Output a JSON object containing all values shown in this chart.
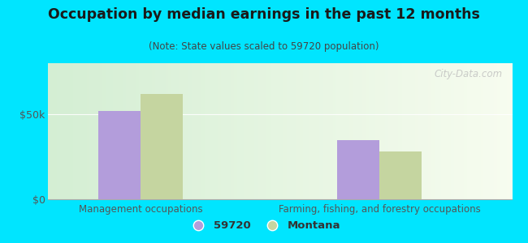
{
  "title": "Occupation by median earnings in the past 12 months",
  "subtitle": "(Note: State values scaled to 59720 population)",
  "categories": [
    "Management occupations",
    "Farming, fishing, and forestry occupations"
  ],
  "values_59720": [
    52000,
    35000
  ],
  "values_montana": [
    62000,
    28000
  ],
  "bar_color_59720": "#b39ddb",
  "bar_color_montana": "#c5d5a0",
  "yticks": [
    0,
    50000
  ],
  "ytick_labels": [
    "$0",
    "$50k"
  ],
  "ylim": [
    0,
    80000
  ],
  "background_outer": "#00e5ff",
  "legend_label_59720": "59720",
  "legend_label_montana": "Montana",
  "watermark": "City-Data.com",
  "bar_width": 0.32,
  "group_positions": [
    1.0,
    2.8
  ]
}
